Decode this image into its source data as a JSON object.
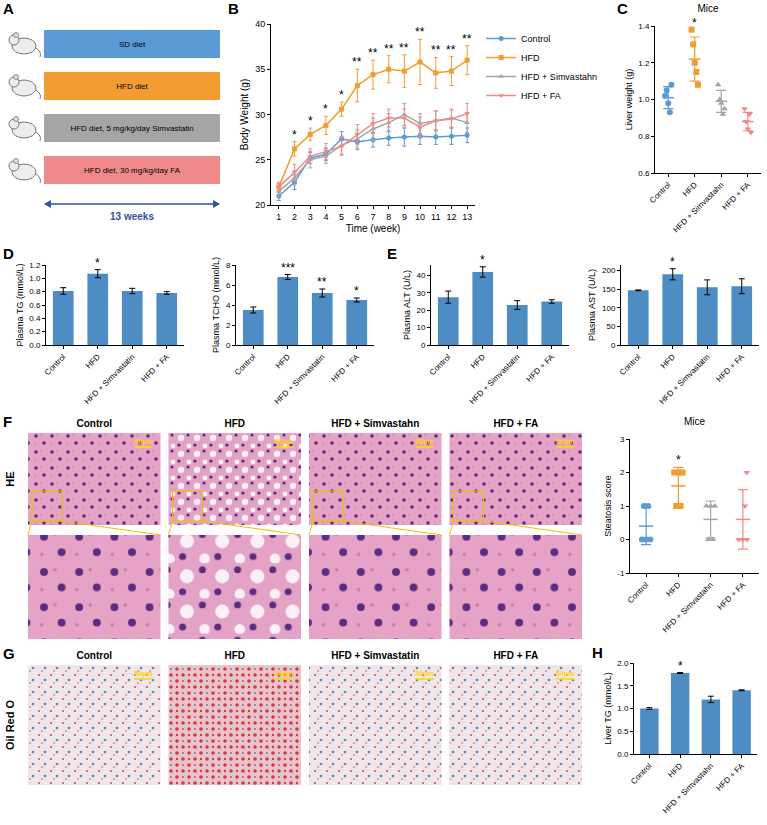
{
  "diagram": {
    "panel": "A",
    "groups": [
      {
        "label": "SD diet",
        "color": "#5B9BD5"
      },
      {
        "label": "HFD diet",
        "color": "#F39C33"
      },
      {
        "label": "HFD diet, 5 mg/kg/day Simvastatin",
        "color": "#A5A5A5"
      },
      {
        "label": "HFD diet, 30 mg/kg/day FA",
        "color": "#F08A8A"
      }
    ],
    "duration": "13 weeks"
  },
  "chart_data": [
    {
      "panel": "B",
      "type": "line",
      "xlabel": "Time (week)",
      "ylabel": "Body Weight (g)",
      "x": [
        1,
        2,
        3,
        4,
        5,
        6,
        7,
        8,
        9,
        10,
        11,
        12,
        13
      ],
      "xlim": [
        0.5,
        13.5
      ],
      "xticks": [
        1,
        2,
        3,
        4,
        5,
        6,
        7,
        8,
        9,
        10,
        11,
        12,
        13
      ],
      "ylim": [
        20,
        40
      ],
      "yticks": [
        20,
        25,
        30,
        35,
        40
      ],
      "grid": false,
      "legend": "right",
      "series": [
        {
          "name": "Control",
          "color": "#5B9BD5",
          "marker": "circle",
          "values": [
            21.0,
            22.5,
            25.2,
            25.6,
            27.3,
            27.0,
            27.2,
            27.4,
            27.5,
            27.6,
            27.5,
            27.6,
            27.7
          ],
          "errors": [
            0.5,
            0.8,
            0.6,
            0.7,
            0.8,
            0.9,
            0.8,
            0.8,
            1.0,
            0.9,
            0.8,
            0.9,
            0.8
          ]
        },
        {
          "name": "HFD",
          "color": "#F39C33",
          "marker": "square",
          "values": [
            22.0,
            26.2,
            27.8,
            28.8,
            30.6,
            33.2,
            34.4,
            35.0,
            34.8,
            35.8,
            34.6,
            34.8,
            36.0
          ],
          "errors": [
            0.4,
            0.8,
            0.7,
            1.0,
            0.8,
            1.8,
            1.6,
            1.5,
            1.8,
            2.5,
            1.7,
            1.6,
            1.6
          ]
        },
        {
          "name": "HFD + Simvastahn",
          "color": "#A5A5A5",
          "marker": "triangle-up",
          "values": [
            21.5,
            23.0,
            25.0,
            25.4,
            26.6,
            27.3,
            28.4,
            29.1,
            30.0,
            29.0,
            29.3,
            29.6,
            29.1
          ],
          "errors": [
            0.5,
            0.8,
            0.9,
            0.8,
            1.0,
            1.0,
            1.2,
            1.0,
            1.2,
            1.1,
            1.1,
            1.0,
            1.1
          ]
        },
        {
          "name": "HFD + FA",
          "color": "#F08A8A",
          "marker": "triangle-down",
          "values": [
            22.0,
            23.6,
            25.4,
            25.9,
            26.5,
            27.8,
            29.0,
            29.6,
            29.6,
            28.6,
            29.3,
            29.5,
            30.1
          ],
          "errors": [
            0.5,
            0.9,
            0.8,
            0.9,
            1.0,
            1.1,
            1.1,
            1.0,
            1.0,
            1.1,
            1.1,
            1.0,
            1.1
          ]
        }
      ],
      "annotations": [
        null,
        "*",
        "*",
        "*",
        "*",
        "**",
        "**",
        "**",
        "**",
        "**",
        "**",
        "**",
        "**"
      ]
    },
    {
      "panel": "C",
      "type": "dot",
      "title": "Mice",
      "ylabel": "Liver weight (g)",
      "categories": [
        "Control",
        "HFD",
        "HFD + Simvastahn",
        "HFD + FA"
      ],
      "ylim": [
        0.6,
        1.4
      ],
      "yticks": [
        0.6,
        0.8,
        {
          "value": 1,
          "label": "1.0"
        },
        1.2,
        1.4
      ],
      "grid": false,
      "points": [
        [
          1.02,
          1.05,
          0.98,
          0.93,
          1.08
        ],
        [
          1.38,
          1.3,
          1.2,
          1.15,
          1.08
        ],
        [
          1.08,
          1.0,
          0.98,
          0.92,
          0.95
        ],
        [
          0.95,
          0.88,
          0.84,
          0.92,
          0.82
        ]
      ],
      "means": [
        1.01,
        1.22,
        0.99,
        0.88
      ],
      "errors": [
        0.06,
        0.12,
        0.06,
        0.05
      ],
      "colors": [
        "#5B9BD5",
        "#F39C33",
        "#A5A5A5",
        "#F08A8A"
      ],
      "markers": [
        "circle",
        "square",
        "triangle-up",
        "triangle-down"
      ],
      "annotations": [
        null,
        "*",
        null,
        null
      ]
    },
    {
      "panel": "D",
      "type": "bar",
      "ylabel": "Plasma TG (mmol/L)",
      "color": "#4E8DC4",
      "categories": [
        "Control",
        "HFD",
        "HFD + Simvastatin",
        "HFD + FA"
      ],
      "values": [
        0.81,
        1.07,
        0.81,
        0.78
      ],
      "errors": [
        0.05,
        0.06,
        0.04,
        0.02
      ],
      "ylim": [
        0,
        1.2
      ],
      "yticks": [
        {
          "value": 0,
          "label": "0.0"
        },
        0.2,
        0.4,
        0.6,
        0.8,
        {
          "value": 1,
          "label": "1.0"
        },
        1.2
      ],
      "grid": false,
      "annotations": [
        null,
        "*",
        null,
        null
      ]
    },
    {
      "type": "bar",
      "ylabel": "Plasma TCHO (mmol/L)",
      "color": "#4E8DC4",
      "categories": [
        "Control",
        "HFD",
        "HFD + Simvastatin",
        "HFD + FA"
      ],
      "values": [
        3.5,
        6.8,
        5.2,
        4.5
      ],
      "errors": [
        0.3,
        0.25,
        0.4,
        0.2
      ],
      "ylim": [
        0,
        8
      ],
      "yticks": [
        0,
        2,
        4,
        6,
        8
      ],
      "grid": false,
      "annotations": [
        null,
        "***",
        "**",
        "*"
      ]
    },
    {
      "panel": "E",
      "type": "bar",
      "ylabel": "Plasma ALT (U/L)",
      "color": "#4E8DC4",
      "categories": [
        "Control",
        "HFD",
        "HFD + Simvastatin",
        "HFD + FA"
      ],
      "values": [
        27.5,
        42,
        23,
        25
      ],
      "errors": [
        3.5,
        3,
        2.5,
        1
      ],
      "ylim": [
        0,
        46
      ],
      "yticks": [
        0,
        10,
        20,
        30,
        40
      ],
      "grid": false,
      "annotations": [
        null,
        "*",
        null,
        null
      ]
    },
    {
      "type": "bar",
      "ylabel": "Plasma AST (U/L)",
      "color": "#4E8DC4",
      "categories": [
        "Control",
        "HFD",
        "HFD + Simvastatin",
        "HFD + FA"
      ],
      "values": [
        147,
        190,
        155,
        158
      ],
      "errors": [
        1,
        15,
        20,
        20
      ],
      "ylim": [
        0,
        215
      ],
      "yticks": [
        0,
        50,
        100,
        150,
        200
      ],
      "grid": false,
      "annotations": [
        null,
        "*",
        null,
        null
      ]
    },
    {
      "type": "dot",
      "title": "Mice",
      "ylabel": "Steatosis score",
      "categories": [
        "Control",
        "HFD",
        "HFD + Simvastahn",
        "HFD + FA"
      ],
      "ylim": [
        -1,
        3
      ],
      "yticks": [
        -1,
        0,
        1,
        2,
        3
      ],
      "grid": false,
      "points": [
        [
          0,
          0,
          0,
          1,
          1
        ],
        [
          1,
          1,
          2,
          2,
          2
        ],
        [
          0,
          0,
          1,
          1,
          1
        ],
        [
          0,
          0,
          0,
          1,
          2
        ]
      ],
      "means": [
        0.4,
        1.6,
        0.6,
        0.6
      ],
      "errors": [
        0.55,
        0.55,
        0.55,
        0.89
      ],
      "colors": [
        "#5B9BD5",
        "#F39C33",
        "#A5A5A5",
        "#F08A8A"
      ],
      "markers": [
        "circle",
        "square",
        "triangle-up",
        "triangle-down"
      ],
      "annotations": [
        null,
        "*",
        null,
        null
      ]
    },
    {
      "panel": "H",
      "type": "bar",
      "ylabel": "Liver TG (mmol/L)",
      "color": "#4E8DC4",
      "categories": [
        "Control",
        "HFD",
        "HFD + Simvastahn",
        "HFD + FA"
      ],
      "values": [
        1.0,
        1.78,
        1.2,
        1.4
      ],
      "errors": [
        0.02,
        0.01,
        0.07,
        0.01
      ],
      "ylim": [
        0,
        2
      ],
      "yticks": [
        {
          "value": 0,
          "label": "0.0"
        },
        0.5,
        {
          "value": 1,
          "label": "1.0"
        },
        1.5,
        {
          "value": 2,
          "label": "2.0"
        }
      ],
      "grid": false,
      "annotations": [
        null,
        "*",
        null,
        null
      ]
    }
  ],
  "figures": [
    {
      "panel": "F",
      "row_label": "HE",
      "columns": [
        "Control",
        "HFD",
        "HFD + Simvastahn",
        "HFD + FA"
      ],
      "scale_bar": "50μm",
      "zoom": true
    },
    {
      "panel": "G",
      "row_label": "Oil Red O",
      "columns": [
        "Control",
        "HFD",
        "HFD + Simvastatin",
        "HFD + FA"
      ],
      "scale_bar": "50μm",
      "zoom": false
    }
  ]
}
